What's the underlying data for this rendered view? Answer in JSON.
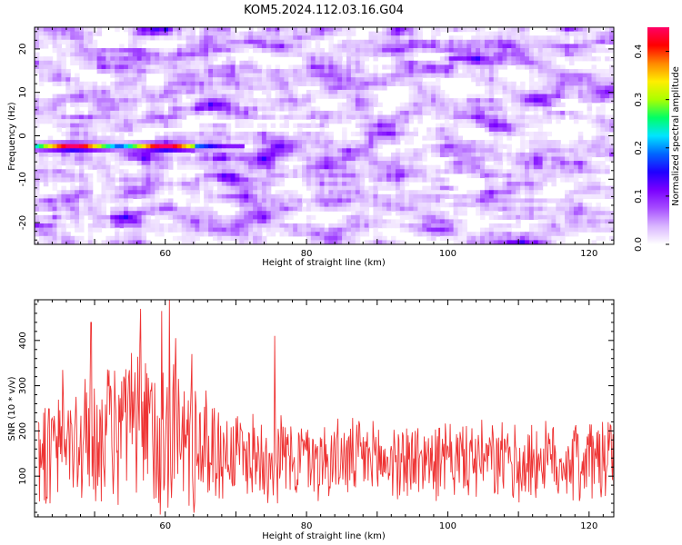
{
  "title": "KOM5.2024.112.03.16.G04",
  "chart_data": [
    {
      "type": "heatmap",
      "xlabel": "Height of straight line (km)",
      "ylabel": "Frequency (Hz)",
      "xlim": [
        41.5,
        123.5
      ],
      "ylim": [
        -25,
        25
      ],
      "xticks": [
        60,
        80,
        100,
        120
      ],
      "yticks": [
        -20,
        -10,
        0,
        10,
        20
      ],
      "colorbar": {
        "label": "Normalized spectral amplitude",
        "range": [
          0.0,
          0.45
        ],
        "ticks": [
          0.0,
          0.1,
          0.2,
          0.3,
          0.4
        ],
        "colormap": [
          "#ffffff",
          "#d9b6ff",
          "#a64dff",
          "#7a00ff",
          "#1f00ff",
          "#0066ff",
          "#00e5ff",
          "#00ff66",
          "#aaff00",
          "#ffee00",
          "#ff8800",
          "#ff0000",
          "#ff0066"
        ]
      },
      "feature": {
        "description_value": "strong narrow band",
        "frequency_hz": -2.5,
        "x_start_km": 42,
        "x_end_km": 70,
        "peak_amplitude": 0.45,
        "peak_x_km": [
          47,
          60
        ]
      },
      "background_amplitude_range": [
        0.0,
        0.12
      ]
    },
    {
      "type": "line",
      "xlabel": "Height of straight line (km)",
      "ylabel": "SNR (10 * v/v)",
      "xlim": [
        41.5,
        123.5
      ],
      "ylim": [
        10,
        490
      ],
      "xticks": [
        60,
        80,
        100,
        120
      ],
      "yticks": [
        100,
        200,
        300,
        400
      ],
      "color": "#ee3333",
      "envelope_km": [
        42,
        50,
        55,
        60,
        65,
        70,
        80,
        90,
        100,
        110,
        123.5
      ],
      "envelope_mean": [
        160,
        180,
        210,
        200,
        165,
        150,
        140,
        135,
        135,
        130,
        140
      ],
      "envelope_spread": [
        100,
        130,
        150,
        170,
        120,
        90,
        80,
        75,
        75,
        75,
        85
      ],
      "peaks": [
        {
          "x": 49.5,
          "y": 440
        },
        {
          "x": 56.5,
          "y": 470
        },
        {
          "x": 59.5,
          "y": 465
        },
        {
          "x": 60.6,
          "y": 490
        },
        {
          "x": 61.5,
          "y": 405
        },
        {
          "x": 75.5,
          "y": 410
        },
        {
          "x": 63.8,
          "y": 370
        },
        {
          "x": 45.5,
          "y": 335
        }
      ]
    }
  ]
}
